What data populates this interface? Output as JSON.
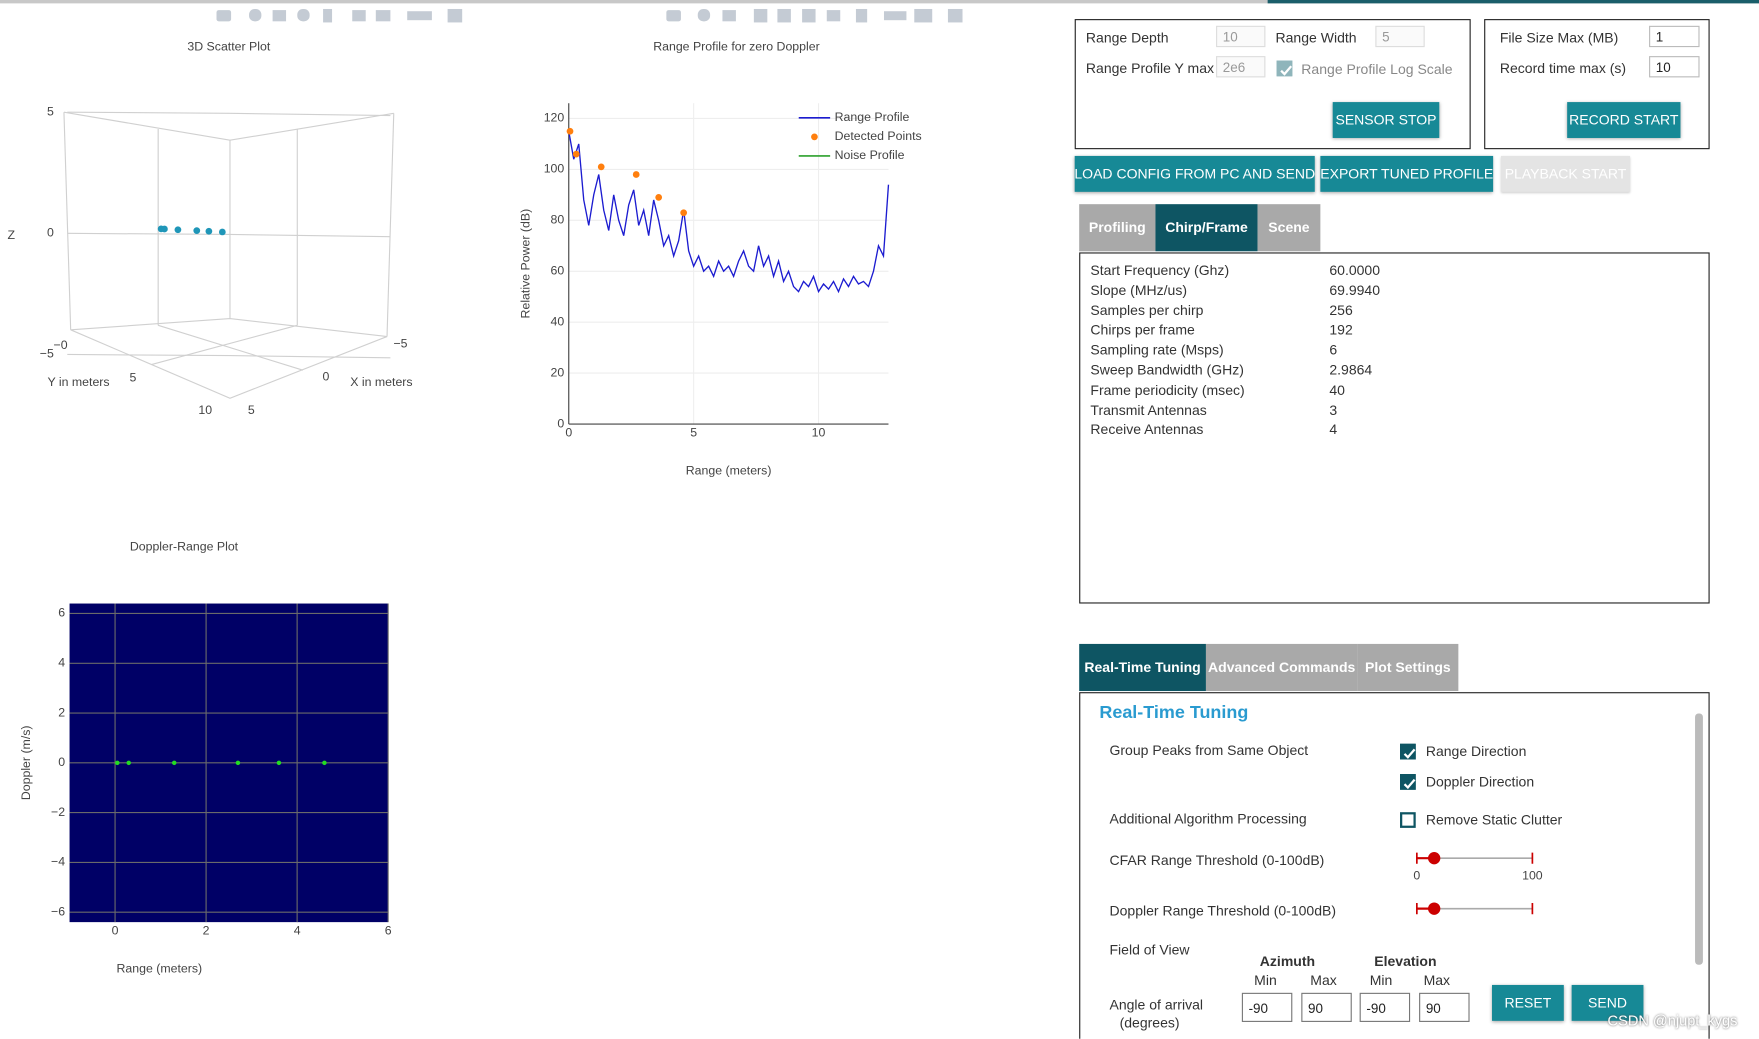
{
  "chart_data": [
    {
      "type": "scatter3d",
      "title": "3D Scatter Plot",
      "xlabel": "X in meters",
      "ylabel": "Y in meters",
      "zlabel": "Z",
      "xticks": [
        {
          "value": -5,
          "label": "−5"
        },
        0,
        5
      ],
      "yticks": [
        {
          "value": 0,
          "label": "−0"
        },
        5,
        10
      ],
      "zticks": [
        {
          "value": -5,
          "label": "−5"
        },
        0,
        5
      ],
      "series": [
        {
          "color": "#1f96b8",
          "x": [
            0,
            0,
            0,
            0,
            0,
            0
          ],
          "y": [
            0.05,
            0.3,
            1.3,
            2.7,
            3.6,
            4.6
          ],
          "z": [
            0,
            0,
            0,
            0,
            0,
            0
          ]
        }
      ]
    },
    {
      "type": "line",
      "title": "Range Profile for zero Doppler",
      "xlabel": "Range (meters)",
      "ylabel": "Relative Power (dB)",
      "xlim": [
        0,
        12.8
      ],
      "ylim": [
        0,
        126
      ],
      "xticks": [
        0,
        5,
        10
      ],
      "yticks": [
        0,
        20,
        40,
        60,
        80,
        100,
        120
      ],
      "grid": true,
      "legend": "top-right",
      "series": [
        {
          "name": "Range Profile",
          "color": "#1c1cd0",
          "mode": "lines",
          "x": [
            0,
            0.2,
            0.4,
            0.6,
            0.8,
            1,
            1.2,
            1.4,
            1.6,
            1.8,
            2,
            2.2,
            2.4,
            2.6,
            2.8,
            3,
            3.2,
            3.4,
            3.6,
            3.8,
            4,
            4.2,
            4.4,
            4.6,
            4.8,
            5,
            5.2,
            5.4,
            5.6,
            5.8,
            6,
            6.2,
            6.4,
            6.6,
            6.8,
            7,
            7.2,
            7.4,
            7.6,
            7.8,
            8,
            8.2,
            8.4,
            8.6,
            8.8,
            9,
            9.2,
            9.4,
            9.6,
            9.8,
            10,
            10.2,
            10.4,
            10.6,
            10.8,
            11,
            11.2,
            11.4,
            11.6,
            11.8,
            12,
            12.2,
            12.4,
            12.6,
            12.8
          ],
          "values": [
            115,
            104,
            110,
            88,
            78,
            90,
            98,
            84,
            76,
            90,
            80,
            74,
            86,
            92,
            78,
            84,
            74,
            88,
            80,
            70,
            74,
            66,
            72,
            84,
            68,
            62,
            66,
            60,
            62,
            58,
            64,
            60,
            62,
            58,
            64,
            68,
            62,
            60,
            70,
            62,
            66,
            58,
            64,
            56,
            60,
            54,
            52,
            56,
            54,
            58,
            52,
            55,
            53,
            56,
            52,
            57,
            54,
            58,
            55,
            56,
            54,
            60,
            70,
            66,
            94
          ]
        },
        {
          "name": "Detected Points",
          "color": "#ff7f0e",
          "mode": "markers",
          "x": [
            0.05,
            0.3,
            1.3,
            2.7,
            3.6,
            4.6
          ],
          "values": [
            115,
            106,
            101,
            98,
            89,
            83
          ]
        },
        {
          "name": "Noise Profile",
          "color": "#2ca02c",
          "mode": "lines",
          "x": [],
          "values": []
        }
      ]
    },
    {
      "type": "scatter",
      "title": "Doppler-Range Plot",
      "xlabel": "Range (meters)",
      "ylabel": "Doppler (m/s)",
      "xlim": [
        -1,
        6
      ],
      "ylim": [
        -6.4,
        6.4
      ],
      "xticks": [
        0,
        2,
        4,
        6
      ],
      "yticks": [
        {
          "value": -6,
          "label": "−6"
        },
        {
          "value": -4,
          "label": "−4"
        },
        {
          "value": -2,
          "label": "−2"
        },
        0,
        2,
        4,
        6
      ],
      "grid": true,
      "plot_bg": "#000066",
      "grid_color": "#6a6a6a",
      "series": [
        {
          "color": "#22dd22",
          "mode": "markers",
          "x": [
            0.05,
            0.3,
            1.3,
            2.7,
            3.6,
            4.6
          ],
          "values": [
            0,
            0,
            0,
            0,
            0,
            0
          ]
        }
      ]
    }
  ],
  "controls": {
    "range_depth": {
      "label": "Range Depth",
      "value": "10"
    },
    "range_width": {
      "label": "Range Width",
      "value": "5"
    },
    "range_profile_y_max": {
      "label": "Range Profile Y max",
      "value": "2e6"
    },
    "log_scale": {
      "label": "Range Profile Log Scale",
      "checked": true
    },
    "sensor_stop": "SENSOR STOP",
    "file_size_max": {
      "label": "File Size Max (MB)",
      "value": "1"
    },
    "record_time_max": {
      "label": "Record time max (s)",
      "value": "10"
    },
    "record_start": "RECORD START",
    "buttons": [
      "LOAD CONFIG FROM PC AND SEND",
      "EXPORT TUNED PROFILE",
      "PLAYBACK START"
    ]
  },
  "config_tabs": {
    "tabs": [
      "Profiling",
      "Chirp/Frame",
      "Scene"
    ],
    "active": 1
  },
  "config_table": [
    [
      "Start Frequency (Ghz)",
      "60.0000"
    ],
    [
      "Slope (MHz/us)",
      "69.9940"
    ],
    [
      "Samples per chirp",
      "256"
    ],
    [
      "Chirps per frame",
      "192"
    ],
    [
      "Sampling rate (Msps)",
      "6"
    ],
    [
      "Sweep Bandwidth (GHz)",
      "2.9864"
    ],
    [
      "Frame periodicity (msec)",
      "40"
    ],
    [
      "Transmit Antennas",
      "3"
    ],
    [
      "Receive Antennas",
      "4"
    ]
  ],
  "tuning_tabs": {
    "tabs": [
      "Real-Time Tuning",
      "Advanced Commands",
      "Plot Settings"
    ],
    "active": 0
  },
  "tuning": {
    "heading": "Real-Time Tuning",
    "group_peaks": {
      "label": "Group Peaks from Same Object",
      "options": [
        {
          "label": "Range Direction",
          "checked": true
        },
        {
          "label": "Doppler Direction",
          "checked": true
        }
      ]
    },
    "additional": {
      "label": "Additional Algorithm Processing",
      "options": [
        {
          "label": "Remove Static Clutter",
          "checked": false
        }
      ]
    },
    "cfar": {
      "label": "CFAR Range Threshold (0-100dB)",
      "min": 0,
      "max": 100,
      "value": 15
    },
    "doppler": {
      "label": "Doppler Range Threshold (0-100dB)",
      "value": 15
    },
    "field_of_view": {
      "label": "Field of View",
      "groups": [
        {
          "name": "Azimuth",
          "min_label": "Min",
          "max_label": "Max",
          "min": "-90",
          "max": "90"
        },
        {
          "name": "Elevation",
          "min_label": "Min",
          "max_label": "Max",
          "min": "-90",
          "max": "90"
        }
      ],
      "angle_label": [
        "Angle of arrival",
        "(degrees)"
      ]
    },
    "reset": "RESET",
    "send": "SEND"
  },
  "watermark": "CSDN @njupt_kygs"
}
